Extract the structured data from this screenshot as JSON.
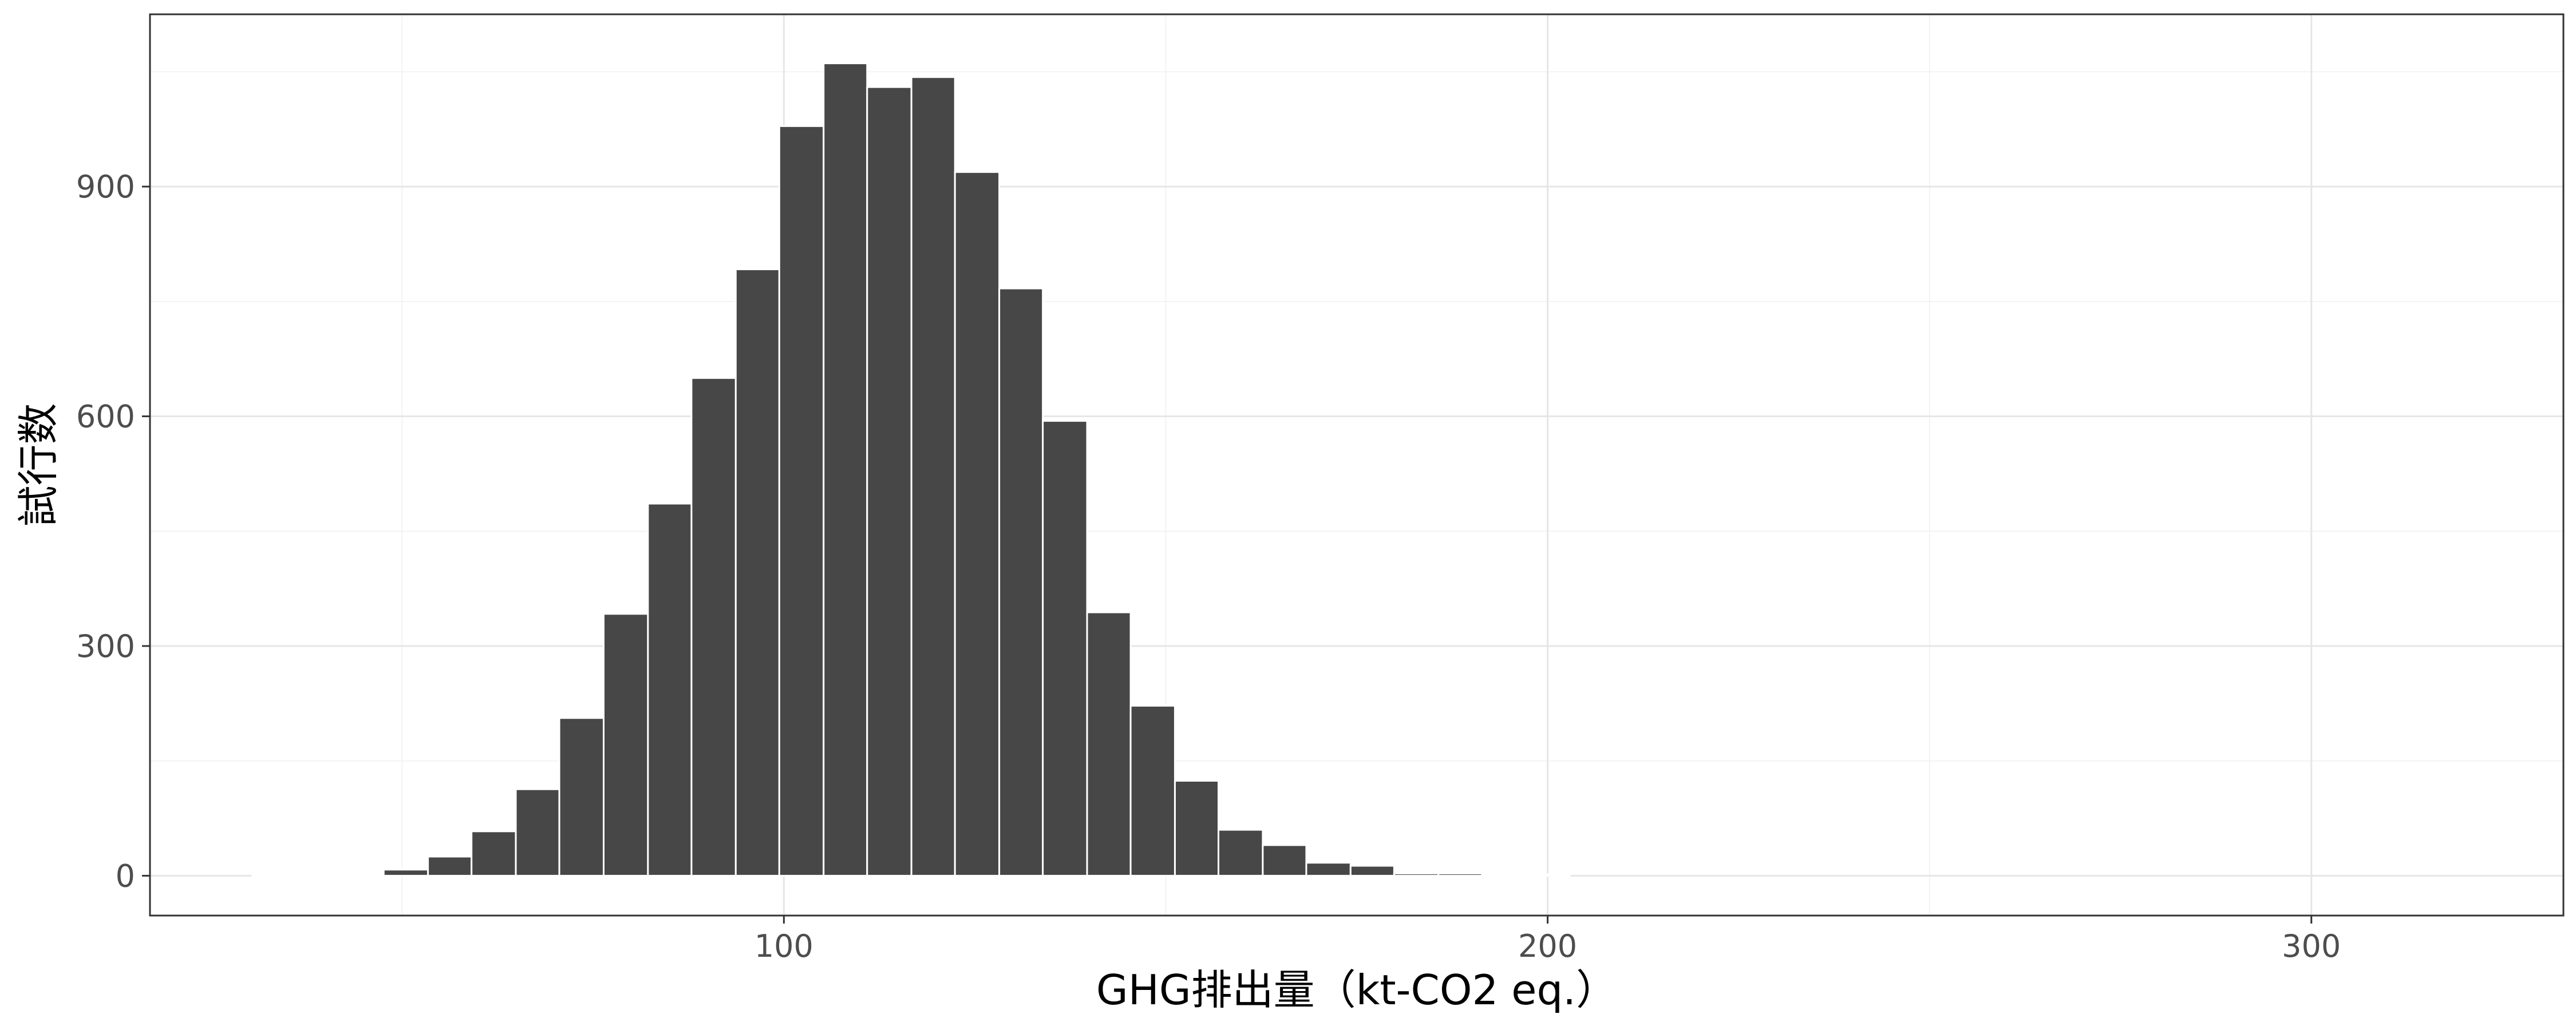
{
  "chart_data": {
    "type": "bar",
    "subtype": "histogram",
    "xlabel": "GHG排出量（kt-CO2 eq.）",
    "ylabel": "試行数",
    "xlim": [
      17,
      333
    ],
    "ylim": [
      -52,
      1125
    ],
    "x_ticks": [
      100,
      200,
      300
    ],
    "x_tick_labels": [
      "100",
      "200",
      "300"
    ],
    "y_ticks": [
      0,
      300,
      600,
      900
    ],
    "y_tick_labels": [
      "0",
      "300",
      "600",
      "900"
    ],
    "grid": true,
    "bin_width": 5.75,
    "bins": [
      {
        "x0": 30.4,
        "x1": 36.1,
        "count": 0
      },
      {
        "x0": 36.1,
        "x1": 41.9,
        "count": 0
      },
      {
        "x0": 41.9,
        "x1": 47.6,
        "count": 2
      },
      {
        "x0": 47.6,
        "x1": 53.4,
        "count": 8
      },
      {
        "x0": 53.4,
        "x1": 59.1,
        "count": 25
      },
      {
        "x0": 59.1,
        "x1": 64.9,
        "count": 58
      },
      {
        "x0": 64.9,
        "x1": 70.6,
        "count": 113
      },
      {
        "x0": 70.6,
        "x1": 76.4,
        "count": 206
      },
      {
        "x0": 76.4,
        "x1": 82.2,
        "count": 342
      },
      {
        "x0": 82.2,
        "x1": 87.9,
        "count": 486
      },
      {
        "x0": 87.9,
        "x1": 93.7,
        "count": 650
      },
      {
        "x0": 93.7,
        "x1": 99.4,
        "count": 792
      },
      {
        "x0": 99.4,
        "x1": 105.2,
        "count": 979
      },
      {
        "x0": 105.2,
        "x1": 110.9,
        "count": 1061
      },
      {
        "x0": 110.9,
        "x1": 116.7,
        "count": 1030
      },
      {
        "x0": 116.7,
        "x1": 122.4,
        "count": 1043
      },
      {
        "x0": 122.4,
        "x1": 128.2,
        "count": 919
      },
      {
        "x0": 128.2,
        "x1": 133.9,
        "count": 767
      },
      {
        "x0": 133.9,
        "x1": 139.7,
        "count": 594
      },
      {
        "x0": 139.7,
        "x1": 145.4,
        "count": 344
      },
      {
        "x0": 145.4,
        "x1": 151.2,
        "count": 222
      },
      {
        "x0": 151.2,
        "x1": 156.9,
        "count": 124
      },
      {
        "x0": 156.9,
        "x1": 162.7,
        "count": 60
      },
      {
        "x0": 162.7,
        "x1": 168.4,
        "count": 40
      },
      {
        "x0": 168.4,
        "x1": 174.2,
        "count": 17
      },
      {
        "x0": 174.2,
        "x1": 179.9,
        "count": 13
      },
      {
        "x0": 179.9,
        "x1": 185.7,
        "count": 3
      },
      {
        "x0": 185.7,
        "x1": 191.4,
        "count": 3
      },
      {
        "x0": 191.4,
        "x1": 197.2,
        "count": 0
      },
      {
        "x0": 197.2,
        "x1": 202.9,
        "count": 2
      }
    ],
    "bar_fill": "#474747",
    "bar_outline": "#ffffff",
    "panel_border": "#333333",
    "grid_color": "#e6e6e6"
  }
}
